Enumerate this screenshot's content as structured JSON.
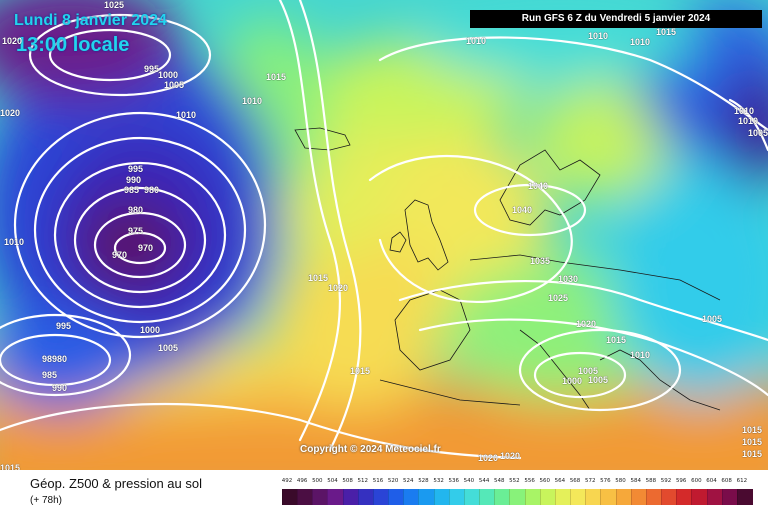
{
  "header": {
    "date": "Lundi 8 janvier 2024",
    "time": "13:00 locale",
    "run": "Run GFS 6 Z du Vendredi 5 janvier 2024"
  },
  "copyright": "Copyright © 2024 Meteociel.fr",
  "footer": {
    "title": "Géop. Z500 & pression au sol",
    "subtitle": "(+ 78h)"
  },
  "isobar_labels": [
    "1025",
    "1020",
    "995",
    "1000",
    "1005",
    "1010",
    "1015",
    "1010",
    "1010",
    "1010",
    "1015",
    "1010",
    "1020",
    "1010",
    "1010",
    "1005",
    "995",
    "990",
    "985",
    "980",
    "980",
    "975",
    "970",
    "970",
    "1010",
    "1040",
    "1040",
    "1035",
    "1030",
    "1025",
    "1020",
    "1015",
    "1010",
    "1005",
    "1005",
    "1000",
    "1005",
    "1015",
    "1020",
    "995",
    "1000",
    "1005",
    "98980",
    "985",
    "990",
    "1015",
    "1015",
    "1020",
    "1020",
    "1015",
    "1015",
    "1015"
  ],
  "legend": {
    "unit_hint": "dam",
    "ticks": [
      "492",
      "496",
      "500",
      "504",
      "508",
      "512",
      "516",
      "520",
      "524",
      "528",
      "532",
      "536",
      "540",
      "544",
      "548",
      "552",
      "556",
      "560",
      "564",
      "568",
      "572",
      "576",
      "580",
      "584",
      "588",
      "592",
      "596",
      "600",
      "604",
      "608",
      "612"
    ],
    "colors": [
      "#3a0a2a",
      "#4b0e43",
      "#5b1466",
      "#6a1a8a",
      "#4a1fa8",
      "#3530c0",
      "#2a44d6",
      "#1f5ee8",
      "#1a7cf0",
      "#1a9af0",
      "#22b6ee",
      "#33ccea",
      "#44ddd8",
      "#55e8b8",
      "#6aee96",
      "#88f27a",
      "#a8f466",
      "#c8f45c",
      "#e4f05a",
      "#f4e85a",
      "#f8d650",
      "#f8c044",
      "#f6a83a",
      "#f28a34",
      "#ec6a30",
      "#e24a2e",
      "#d42a2a",
      "#c01a30",
      "#a01242",
      "#7a0c4a",
      "#4a0a30"
    ]
  }
}
